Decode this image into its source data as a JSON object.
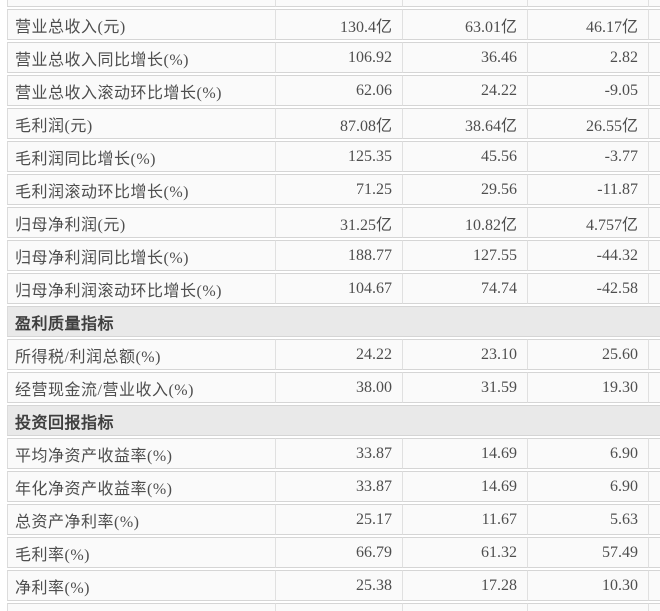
{
  "colors": {
    "row_bg": "#fafafa",
    "section_bg": "#e9e9e9",
    "horizontal_border": "#d5d5d5",
    "vertical_border": "#e0e0e0",
    "text": "#4e4e4e",
    "section_text": "#3f3f3f",
    "page_bg": "#ffffff"
  },
  "table": {
    "rows": [
      {
        "type": "spacer"
      },
      {
        "type": "data",
        "label": "营业总收入(元)",
        "values": [
          "130.4亿",
          "63.01亿",
          "46.17亿"
        ]
      },
      {
        "type": "data",
        "label": "营业总收入同比增长(%)",
        "values": [
          "106.92",
          "36.46",
          "2.82"
        ]
      },
      {
        "type": "data",
        "label": "营业总收入滚动环比增长(%)",
        "values": [
          "62.06",
          "24.22",
          "-9.05"
        ]
      },
      {
        "type": "data",
        "label": "毛利润(元)",
        "values": [
          "87.08亿",
          "38.64亿",
          "26.55亿"
        ]
      },
      {
        "type": "data",
        "label": "毛利润同比增长(%)",
        "values": [
          "125.35",
          "45.56",
          "-3.77"
        ]
      },
      {
        "type": "data",
        "label": "毛利润滚动环比增长(%)",
        "values": [
          "71.25",
          "29.56",
          "-11.87"
        ]
      },
      {
        "type": "data",
        "label": "归母净利润(元)",
        "values": [
          "31.25亿",
          "10.82亿",
          "4.757亿"
        ]
      },
      {
        "type": "data",
        "label": "归母净利润同比增长(%)",
        "values": [
          "188.77",
          "127.55",
          "-44.32"
        ]
      },
      {
        "type": "data",
        "label": "归母净利润滚动环比增长(%)",
        "values": [
          "104.67",
          "74.74",
          "-42.58"
        ]
      },
      {
        "type": "section",
        "label": "盈利质量指标"
      },
      {
        "type": "data",
        "label": "所得税/利润总额(%)",
        "values": [
          "24.22",
          "23.10",
          "25.60"
        ]
      },
      {
        "type": "data",
        "label": "经营现金流/营业收入(%)",
        "values": [
          "38.00",
          "31.59",
          "19.30"
        ]
      },
      {
        "type": "section",
        "label": "投资回报指标"
      },
      {
        "type": "data",
        "label": "平均净资产收益率(%)",
        "values": [
          "33.87",
          "14.69",
          "6.90"
        ]
      },
      {
        "type": "data",
        "label": "年化净资产收益率(%)",
        "values": [
          "33.87",
          "14.69",
          "6.90"
        ]
      },
      {
        "type": "data",
        "label": "总资产净利率(%)",
        "values": [
          "25.17",
          "11.67",
          "5.63"
        ]
      },
      {
        "type": "data",
        "label": "毛利率(%)",
        "values": [
          "66.79",
          "61.32",
          "57.49"
        ]
      },
      {
        "type": "data",
        "label": "净利率(%)",
        "values": [
          "25.38",
          "17.28",
          "10.30"
        ]
      },
      {
        "type": "spacer"
      }
    ]
  }
}
